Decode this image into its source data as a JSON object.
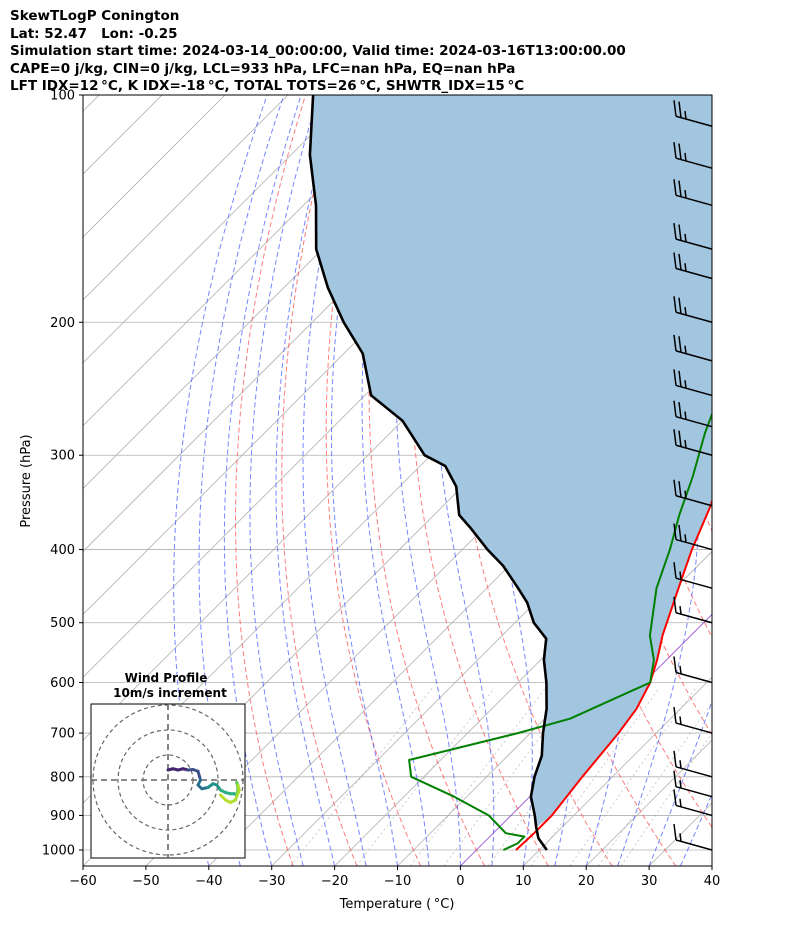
{
  "header": {
    "line1": "SkewTLogP Conington",
    "line2": "Lat: 52.47   Lon: -0.25",
    "line3": "Simulation start time: 2024-03-14_00:00:00, Valid time: 2024-03-16T13:00:00.00",
    "line4": "CAPE=0 j/kg, CIN=0 j/kg, LCL=933 hPa, LFC=nan hPa, EQ=nan hPa",
    "line5": "LFT IDX=12 °C, K IDX=-18 °C, TOTAL TOTS=26 °C, SHWTR_IDX=15 °C"
  },
  "chart_data": {
    "type": "skew-t log-p",
    "xlabel": "Temperature ( °C)",
    "ylabel": "Pressure (hPa)",
    "xlim": [
      -60,
      40
    ],
    "ylim": [
      1050,
      100
    ],
    "x_ticks": [
      -60,
      -50,
      -40,
      -30,
      -20,
      -10,
      0,
      10,
      20,
      30,
      40
    ],
    "x_tick_labels": [
      "−60",
      "−50",
      "−40",
      "−30",
      "−20",
      "−10",
      "0",
      "10",
      "20",
      "30",
      "40"
    ],
    "y_ticks": [
      1000,
      900,
      800,
      700,
      600,
      500,
      400,
      300,
      200,
      100
    ],
    "grid": true,
    "colors": {
      "temperature": "#ff0000",
      "dewpoint": "#008000",
      "parcel": "#000000",
      "cape_fill": "#a3c6e0",
      "dry_adiabat": "#ff5050",
      "moist_adiabat": "#4a5cff",
      "mixing_ratio": "#9a9a9a",
      "isotherm_0": "#8a3fd0"
    },
    "series": [
      {
        "name": "Temperature",
        "points": [
          [
            6.3,
            1000
          ],
          [
            6.5,
            950
          ],
          [
            6.5,
            900
          ],
          [
            5.2,
            800
          ],
          [
            4.0,
            700
          ],
          [
            3.0,
            650
          ],
          [
            1.0,
            600
          ],
          [
            -1.5,
            560
          ],
          [
            -4.5,
            520
          ],
          [
            -9.5,
            450
          ],
          [
            -13.5,
            400
          ],
          [
            -17.5,
            350
          ],
          [
            -23.0,
            300
          ],
          [
            -30.0,
            250
          ],
          [
            -33.0,
            230
          ],
          [
            -32.0,
            210
          ],
          [
            -28.0,
            200
          ],
          [
            -19.0,
            180
          ],
          [
            -20.0,
            170
          ],
          [
            -25.0,
            150
          ],
          [
            -34.0,
            120
          ],
          [
            -40.0,
            100
          ]
        ]
      },
      {
        "name": "Dewpoint",
        "points": [
          [
            4.3,
            1000
          ],
          [
            5.5,
            980
          ],
          [
            5.5,
            960
          ],
          [
            2.0,
            950
          ],
          [
            -3.5,
            900
          ],
          [
            -12.0,
            850
          ],
          [
            -22.0,
            800
          ],
          [
            -25.0,
            760
          ],
          [
            -12.0,
            700
          ],
          [
            -6.0,
            670
          ],
          [
            1.0,
            600
          ],
          [
            -2.0,
            560
          ],
          [
            -6.5,
            520
          ],
          [
            -13.0,
            450
          ],
          [
            -17.0,
            400
          ],
          [
            -21.0,
            360
          ],
          [
            -25.0,
            320
          ],
          [
            -30.0,
            280
          ],
          [
            -35.0,
            240
          ],
          [
            -37.0,
            220
          ],
          [
            -39.5,
            200
          ],
          [
            -38.0,
            190
          ],
          [
            -41.0,
            170
          ],
          [
            -44.0,
            150
          ],
          [
            -46.0,
            120
          ],
          [
            -48.0,
            100
          ]
        ]
      },
      {
        "name": "Parcel",
        "points": [
          [
            11.2,
            1000
          ],
          [
            8.0,
            965
          ],
          [
            5.9,
            933
          ],
          [
            3.8,
            900
          ],
          [
            0.2,
            850
          ],
          [
            -2.4,
            800
          ],
          [
            -4.6,
            750
          ],
          [
            -8.0,
            700
          ],
          [
            -11.3,
            650
          ],
          [
            -15.5,
            600
          ],
          [
            -19.5,
            560
          ],
          [
            -22.5,
            525
          ],
          [
            -27.0,
            500
          ],
          [
            -31.3,
            470
          ],
          [
            -35.0,
            450
          ],
          [
            -41.0,
            420
          ],
          [
            -46.0,
            400
          ],
          [
            -52.0,
            375
          ],
          [
            -56.0,
            360
          ],
          [
            -61.0,
            330
          ],
          [
            -66.0,
            310
          ],
          [
            -71.0,
            300
          ],
          [
            -80.0,
            270
          ],
          [
            -89.0,
            250
          ],
          [
            -97.0,
            220
          ],
          [
            -105.0,
            200
          ],
          [
            -113.0,
            180
          ],
          [
            -121.0,
            160
          ],
          [
            -128.0,
            140
          ],
          [
            -137.0,
            120
          ],
          [
            -146.0,
            100
          ]
        ]
      }
    ],
    "wind_barbs": [
      {
        "p": 1000,
        "speed_kt": 15
      },
      {
        "p": 900,
        "speed_kt": 15
      },
      {
        "p": 850,
        "speed_kt": 15
      },
      {
        "p": 800,
        "speed_kt": 15
      },
      {
        "p": 700,
        "speed_kt": 15
      },
      {
        "p": 600,
        "speed_kt": 15
      },
      {
        "p": 500,
        "speed_kt": 15
      },
      {
        "p": 450,
        "speed_kt": 15
      },
      {
        "p": 400,
        "speed_kt": 25
      },
      {
        "p": 350,
        "speed_kt": 25
      },
      {
        "p": 300,
        "speed_kt": 25
      },
      {
        "p": 275,
        "speed_kt": 25
      },
      {
        "p": 250,
        "speed_kt": 25
      },
      {
        "p": 225,
        "speed_kt": 25
      },
      {
        "p": 200,
        "speed_kt": 25
      },
      {
        "p": 175,
        "speed_kt": 25
      },
      {
        "p": 160,
        "speed_kt": 25
      },
      {
        "p": 140,
        "speed_kt": 25
      },
      {
        "p": 125,
        "speed_kt": 25
      },
      {
        "p": 110,
        "speed_kt": 25
      }
    ],
    "hodograph": {
      "title": "Wind Profile",
      "subtitle": "10m/s increment",
      "rings_ms": [
        10,
        20,
        30
      ],
      "points": [
        [
          0.0,
          4.0
        ],
        [
          2.0,
          4.5
        ],
        [
          4.0,
          4.0
        ],
        [
          6.0,
          4.5
        ],
        [
          8.0,
          4.0
        ],
        [
          10.0,
          4.2
        ],
        [
          12.0,
          3.5
        ],
        [
          13.0,
          0.0
        ],
        [
          12.0,
          -2.0
        ],
        [
          13.5,
          -3.5
        ],
        [
          16.0,
          -3.0
        ],
        [
          18.0,
          -1.5
        ],
        [
          19.5,
          -2.0
        ],
        [
          21.0,
          -4.0
        ],
        [
          23.0,
          -5.0
        ],
        [
          25.0,
          -5.5
        ],
        [
          26.5,
          -5.5
        ],
        [
          27.5,
          -6.0
        ],
        [
          28.0,
          -3.5
        ],
        [
          27.5,
          -1.0
        ],
        [
          28.0,
          -2.0
        ],
        [
          28.5,
          -4.0
        ],
        [
          27.0,
          -8.0
        ],
        [
          25.0,
          -9.0
        ],
        [
          23.0,
          -8.0
        ],
        [
          21.0,
          -6.0
        ]
      ]
    }
  }
}
